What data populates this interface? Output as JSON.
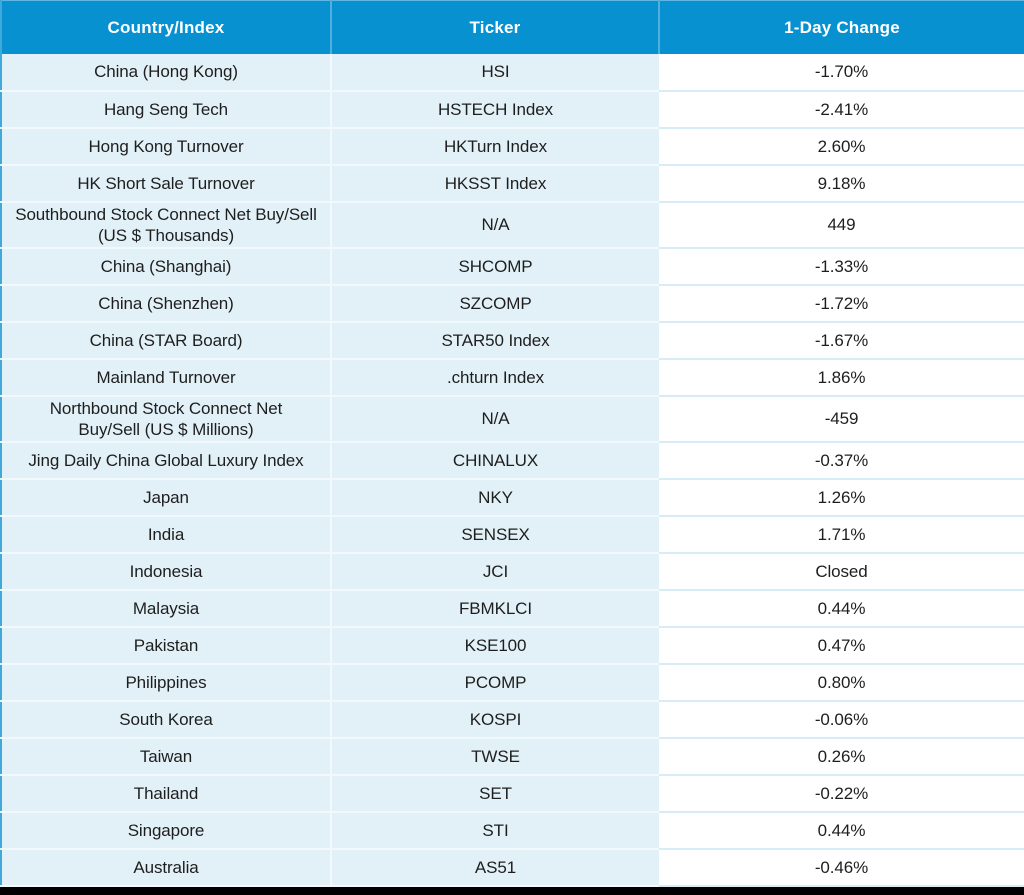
{
  "colors": {
    "header_bg": "#0791D1",
    "header_text": "#FFFFFF",
    "header_divider": "#4FAFDD",
    "row_tint": "#E2F1F8",
    "row_divider_light": "#F2F9FC",
    "row_divider_blue": "#D7ECF7",
    "table_left_edge": "#3FA9DB",
    "table_right_edge": "#CDE9F4",
    "table_top_edge": "#5FB7E2",
    "body_text": "#1E1E1E",
    "bottom_bar": "#000000"
  },
  "chart_data": {
    "type": "table",
    "title": "",
    "columns": [
      "Country/Index",
      "Ticker",
      "1-Day Change"
    ],
    "rows": [
      [
        "China (Hong Kong)",
        "HSI",
        "-1.70%"
      ],
      [
        "Hang Seng Tech",
        "HSTECH Index",
        "-2.41%"
      ],
      [
        "Hong Kong Turnover",
        "HKTurn Index",
        "2.60%"
      ],
      [
        "HK Short Sale Turnover",
        "HKSST Index",
        "9.18%"
      ],
      [
        "Southbound Stock Connect Net Buy/Sell\n(US $ Thousands)",
        "N/A",
        "449"
      ],
      [
        "China (Shanghai)",
        "SHCOMP",
        "-1.33%"
      ],
      [
        "China (Shenzhen)",
        "SZCOMP",
        "-1.72%"
      ],
      [
        "China (STAR Board)",
        "STAR50 Index",
        "-1.67%"
      ],
      [
        "Mainland Turnover",
        ".chturn Index",
        "1.86%"
      ],
      [
        "Northbound Stock Connect Net\nBuy/Sell (US $ Millions)",
        "N/A",
        "-459"
      ],
      [
        "Jing Daily China Global Luxury Index",
        "CHINALUX",
        "-0.37%"
      ],
      [
        "Japan",
        "NKY",
        "1.26%"
      ],
      [
        "India",
        "SENSEX",
        "1.71%"
      ],
      [
        "Indonesia",
        "JCI",
        "Closed"
      ],
      [
        "Malaysia",
        "FBMKLCI",
        "0.44%"
      ],
      [
        "Pakistan",
        "KSE100",
        "0.47%"
      ],
      [
        "Philippines",
        "PCOMP",
        "0.80%"
      ],
      [
        "South Korea",
        "KOSPI",
        "-0.06%"
      ],
      [
        "Taiwan",
        "TWSE",
        "0.26%"
      ],
      [
        "Thailand",
        "SET",
        "-0.22%"
      ],
      [
        "Singapore",
        "STI",
        "0.44%"
      ],
      [
        "Australia",
        "AS51",
        "-0.46%"
      ]
    ]
  }
}
